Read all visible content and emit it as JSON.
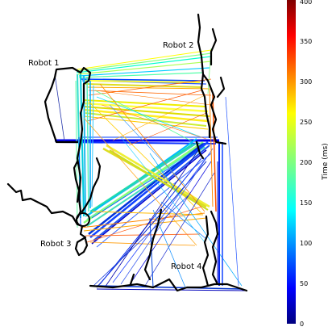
{
  "robots": [
    {
      "id": "robot-1",
      "label": "Robot 1"
    },
    {
      "id": "robot-2",
      "label": "Robot 2"
    },
    {
      "id": "robot-3",
      "label": "Robot 3"
    },
    {
      "id": "robot-4",
      "label": "Robot 4"
    }
  ],
  "colorbar": {
    "title": "Time (ms)",
    "min": 0,
    "max": 400,
    "ticks": [
      "0",
      "50",
      "100",
      "150",
      "200",
      "250",
      "300",
      "350",
      "400"
    ],
    "colormap": "jet"
  },
  "colors": {
    "trajectory": "#000000",
    "background": "#ffffff"
  }
}
